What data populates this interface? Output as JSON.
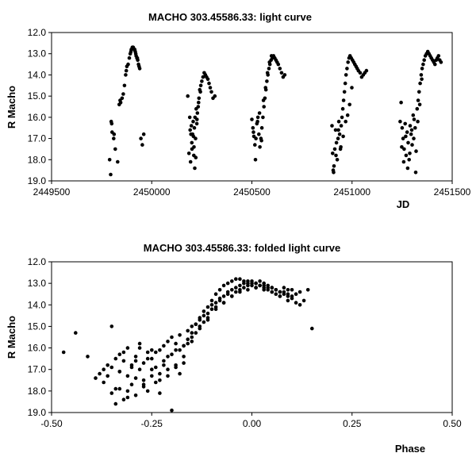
{
  "chart_data": [
    {
      "type": "scatter",
      "title": "MACHO 303.45586.33: light curve",
      "xlabel": "JD",
      "ylabel": "R Macho",
      "xlim": [
        2449500,
        2451500
      ],
      "ylim": [
        12.0,
        19.0
      ],
      "y_inverted": true,
      "x_ticks": [
        "2449500",
        "2450000",
        "2450500",
        "2451000",
        "2451500"
      ],
      "y_ticks": [
        "12.0",
        "13.0",
        "14.0",
        "15.0",
        "16.0",
        "17.0",
        "18.0",
        "19.0"
      ],
      "grid": false,
      "legend": "none",
      "marker_color": "#000000",
      "series": [
        {
          "x": [
            2449795,
            2449798,
            2449802,
            2449810,
            2449818,
            2449830,
            2449838,
            2449845,
            2449852,
            2449858,
            2449864,
            2449870,
            2449876,
            2449882,
            2449888,
            2449893,
            2449898,
            2449903,
            2449908,
            2449913,
            2449918,
            2449922,
            2449926,
            2449930,
            2449934,
            2449940,
            2449946,
            2449953,
            2449960,
            2449790,
            2449800,
            2449812,
            2449842,
            2449873,
            2449896,
            2449905,
            2449915,
            2449920,
            2449928,
            2449937,
            2450180,
            2450186,
            2450190,
            2450194,
            2450198,
            2450201,
            2450204,
            2450207,
            2450210,
            2450213,
            2450216,
            2450219,
            2450222,
            2450225,
            2450228,
            2450232,
            2450236,
            2450240,
            2450245,
            2450250,
            2450256,
            2450262,
            2450268,
            2450274,
            2450280,
            2450286,
            2450292,
            2450298,
            2450306,
            2450315,
            2450192,
            2450200,
            2450208,
            2450215,
            2450220,
            2450226,
            2450234,
            2450243,
            2450196,
            2450211,
            2450500,
            2450505,
            2450510,
            2450515,
            2450520,
            2450525,
            2450530,
            2450535,
            2450540,
            2450545,
            2450550,
            2450555,
            2450560,
            2450565,
            2450570,
            2450575,
            2450580,
            2450585,
            2450590,
            2450596,
            2450602,
            2450608,
            2450614,
            2450620,
            2450626,
            2450632,
            2450640,
            2450648,
            2450656,
            2450664,
            2450508,
            2450518,
            2450528,
            2450538,
            2450548,
            2450558,
            2450568,
            2450578,
            2450588,
            2450598,
            2450900,
            2450903,
            2450906,
            2450910,
            2450914,
            2450918,
            2450922,
            2450926,
            2450930,
            2450934,
            2450938,
            2450942,
            2450946,
            2450950,
            2450954,
            2450958,
            2450962,
            2450966,
            2450970,
            2450975,
            2450980,
            2450985,
            2450990,
            2450996,
            2451002,
            2451008,
            2451014,
            2451020,
            2451026,
            2451032,
            2451040,
            2451048,
            2451056,
            2451064,
            2451072,
            2450908,
            2450920,
            2450932,
            2450944,
            2450956,
            2450968,
            2450978,
            2450988,
            2450999,
            2451240,
            2451245,
            2451250,
            2451255,
            2451260,
            2451265,
            2451270,
            2451275,
            2451280,
            2451285,
            2451290,
            2451295,
            2451300,
            2451305,
            2451310,
            2451315,
            2451320,
            2451325,
            2451330,
            2451335,
            2451340,
            2451345,
            2451350,
            2451355,
            2451360,
            2451366,
            2451372,
            2451378,
            2451384,
            2451390,
            2451396,
            2451402,
            2451408,
            2451414,
            2451420,
            2451426,
            2451432,
            2451438,
            2451444,
            2451248,
            2451258,
            2451268,
            2451278,
            2451288,
            2451298,
            2451308,
            2451318,
            2451328,
            2451338,
            2451348
          ],
          "y": [
            18.7,
            16.2,
            16.7,
            17.0,
            17.5,
            18.1,
            15.4,
            15.3,
            15.1,
            14.9,
            14.5,
            14.0,
            13.6,
            13.5,
            13.2,
            13.0,
            12.8,
            12.7,
            12.7,
            12.8,
            12.9,
            13.1,
            13.2,
            13.3,
            13.5,
            13.7,
            17.0,
            17.3,
            16.8,
            18.0,
            16.3,
            16.8,
            15.2,
            13.8,
            12.9,
            12.7,
            12.8,
            13.0,
            13.2,
            13.6,
            15.0,
            17.7,
            16.0,
            18.1,
            16.4,
            17.5,
            16.8,
            16.2,
            17.8,
            16.5,
            16.0,
            17.0,
            15.6,
            16.3,
            15.8,
            15.5,
            15.1,
            14.7,
            14.5,
            14.3,
            14.1,
            13.9,
            14.0,
            14.1,
            14.2,
            14.4,
            14.6,
            14.8,
            15.1,
            15.0,
            16.6,
            17.2,
            16.9,
            18.4,
            17.9,
            16.1,
            15.3,
            14.8,
            16.8,
            17.4,
            16.1,
            16.5,
            16.9,
            17.3,
            17.0,
            16.3,
            16.0,
            16.8,
            17.4,
            17.0,
            16.5,
            16.0,
            15.5,
            15.1,
            14.7,
            14.3,
            14.0,
            13.7,
            13.5,
            13.3,
            13.2,
            13.1,
            13.2,
            13.3,
            13.4,
            13.5,
            13.7,
            13.9,
            14.1,
            14.0,
            16.7,
            18.0,
            16.2,
            15.8,
            17.1,
            15.2,
            14.6,
            13.9,
            13.4,
            13.1,
            16.4,
            17.7,
            18.5,
            18.3,
            17.5,
            16.6,
            17.2,
            18.0,
            17.0,
            16.2,
            16.8,
            17.5,
            16.4,
            16.0,
            15.6,
            15.2,
            14.8,
            14.4,
            14.0,
            13.7,
            13.4,
            13.2,
            13.1,
            13.2,
            13.3,
            13.4,
            13.5,
            13.6,
            13.7,
            13.8,
            13.9,
            14.1,
            14.0,
            13.9,
            13.8,
            18.6,
            17.8,
            16.6,
            17.4,
            16.9,
            16.2,
            15.9,
            15.4,
            14.6,
            16.2,
            15.3,
            16.5,
            17.0,
            17.5,
            16.3,
            17.8,
            16.7,
            17.2,
            18.0,
            16.4,
            16.8,
            17.3,
            15.9,
            16.1,
            16.5,
            17.6,
            15.6,
            15.2,
            14.8,
            14.4,
            14.0,
            13.7,
            13.5,
            13.3,
            13.1,
            13.0,
            12.9,
            13.0,
            13.1,
            13.2,
            13.3,
            13.4,
            13.5,
            13.3,
            13.2,
            13.1,
            13.3,
            13.4,
            17.4,
            18.1,
            16.9,
            18.4,
            17.7,
            16.6,
            17.0,
            18.6,
            16.2,
            15.4,
            14.2
          ]
        }
      ]
    },
    {
      "type": "scatter",
      "title": "MACHO 303.45586.33: folded light curve",
      "xlabel": "Phase",
      "ylabel": "R Macho",
      "xlim": [
        -0.5,
        0.5
      ],
      "ylim": [
        12.0,
        19.0
      ],
      "y_inverted": true,
      "x_ticks": [
        "-0.50",
        "-0.25",
        "0.00",
        "0.25",
        "0.50"
      ],
      "y_ticks": [
        "12.0",
        "13.0",
        "14.0",
        "15.0",
        "16.0",
        "17.0",
        "18.0",
        "19.0"
      ],
      "grid": false,
      "legend": "none",
      "marker_color": "#000000",
      "series": [
        {
          "x": [
            -0.47,
            -0.44,
            -0.41,
            -0.39,
            -0.38,
            -0.37,
            -0.36,
            -0.35,
            -0.35,
            -0.34,
            -0.34,
            -0.33,
            -0.33,
            -0.32,
            -0.32,
            -0.31,
            -0.31,
            -0.3,
            -0.3,
            -0.29,
            -0.29,
            -0.28,
            -0.28,
            -0.27,
            -0.27,
            -0.26,
            -0.26,
            -0.25,
            -0.25,
            -0.24,
            -0.24,
            -0.23,
            -0.23,
            -0.22,
            -0.22,
            -0.21,
            -0.21,
            -0.2,
            -0.2,
            -0.19,
            -0.19,
            -0.18,
            -0.18,
            -0.17,
            -0.17,
            -0.16,
            -0.16,
            -0.15,
            -0.15,
            -0.14,
            -0.14,
            -0.13,
            -0.13,
            -0.12,
            -0.12,
            -0.11,
            -0.11,
            -0.1,
            -0.1,
            -0.09,
            -0.09,
            -0.08,
            -0.08,
            -0.07,
            -0.07,
            -0.06,
            -0.06,
            -0.05,
            -0.05,
            -0.04,
            -0.04,
            -0.03,
            -0.03,
            -0.02,
            -0.02,
            -0.01,
            -0.01,
            0.0,
            0.0,
            0.01,
            0.01,
            0.02,
            0.02,
            0.03,
            0.03,
            0.04,
            0.04,
            0.05,
            0.05,
            0.06,
            0.06,
            0.07,
            0.07,
            0.08,
            0.08,
            0.09,
            0.09,
            0.1,
            0.1,
            0.11,
            0.12,
            0.13,
            0.14,
            0.15,
            -0.36,
            -0.35,
            -0.34,
            -0.33,
            -0.32,
            -0.31,
            -0.3,
            -0.29,
            -0.28,
            -0.27,
            -0.26,
            -0.25,
            -0.24,
            -0.23,
            -0.22,
            -0.21,
            -0.2,
            -0.19,
            -0.18,
            -0.17,
            -0.16,
            -0.15,
            -0.14,
            -0.13,
            -0.12,
            -0.11,
            -0.1,
            -0.09,
            -0.08,
            -0.07,
            -0.06,
            -0.05,
            -0.04,
            -0.03,
            -0.02,
            -0.01,
            0.0,
            0.01,
            0.02,
            0.03,
            0.04,
            0.05,
            0.06,
            0.07,
            0.08,
            0.09,
            0.1,
            0.11,
            0.12,
            -0.37,
            -0.33,
            -0.31,
            -0.29,
            -0.27,
            -0.25,
            -0.23,
            -0.21,
            -0.19,
            -0.17,
            -0.15,
            -0.13,
            -0.11,
            -0.09,
            -0.07,
            -0.05,
            -0.03,
            -0.01,
            0.01,
            0.03,
            0.05,
            0.07,
            0.09
          ],
          "y": [
            16.2,
            15.3,
            16.4,
            17.4,
            17.2,
            17.6,
            16.8,
            18.1,
            15.0,
            16.5,
            17.9,
            16.3,
            17.1,
            18.4,
            16.6,
            17.3,
            16.0,
            17.7,
            16.9,
            18.2,
            16.4,
            17.0,
            15.8,
            17.5,
            16.7,
            18.0,
            16.2,
            17.3,
            16.5,
            16.9,
            17.6,
            16.1,
            17.2,
            15.9,
            16.6,
            15.7,
            17.0,
            15.5,
            16.3,
            15.8,
            16.8,
            15.4,
            16.1,
            15.9,
            16.4,
            15.6,
            15.2,
            15.0,
            15.7,
            14.9,
            15.3,
            14.7,
            15.0,
            14.5,
            14.8,
            14.4,
            14.6,
            14.2,
            14.0,
            13.9,
            14.1,
            13.8,
            13.7,
            13.6,
            13.9,
            13.5,
            13.4,
            13.3,
            13.6,
            13.2,
            13.4,
            13.1,
            13.3,
            13.0,
            13.2,
            13.1,
            13.0,
            12.9,
            13.1,
            13.0,
            13.2,
            12.9,
            13.1,
            13.0,
            13.2,
            13.1,
            13.3,
            13.2,
            13.4,
            13.3,
            13.5,
            13.4,
            13.6,
            13.2,
            13.4,
            13.3,
            13.5,
            13.6,
            13.3,
            13.5,
            13.4,
            13.8,
            13.3,
            15.1,
            17.3,
            16.9,
            18.6,
            17.1,
            16.2,
            18.0,
            16.8,
            17.4,
            16.0,
            17.8,
            16.5,
            17.0,
            16.2,
            17.5,
            16.8,
            16.4,
            18.9,
            16.1,
            17.2,
            16.7,
            15.8,
            15.3,
            14.9,
            14.6,
            14.3,
            14.1,
            13.8,
            13.5,
            13.3,
            13.1,
            13.0,
            12.9,
            12.8,
            12.8,
            12.9,
            12.9,
            13.0,
            13.0,
            13.1,
            13.1,
            13.2,
            13.2,
            13.3,
            13.4,
            13.5,
            13.6,
            13.7,
            13.9,
            14.0,
            17.0,
            17.9,
            18.3,
            16.6,
            17.7,
            16.1,
            18.1,
            17.3,
            16.9,
            15.9,
            15.5,
            15.1,
            14.7,
            14.2,
            13.9,
            13.6,
            13.4,
            13.3,
            13.2,
            13.3,
            13.4,
            13.6,
            13.8
          ]
        }
      ]
    }
  ]
}
